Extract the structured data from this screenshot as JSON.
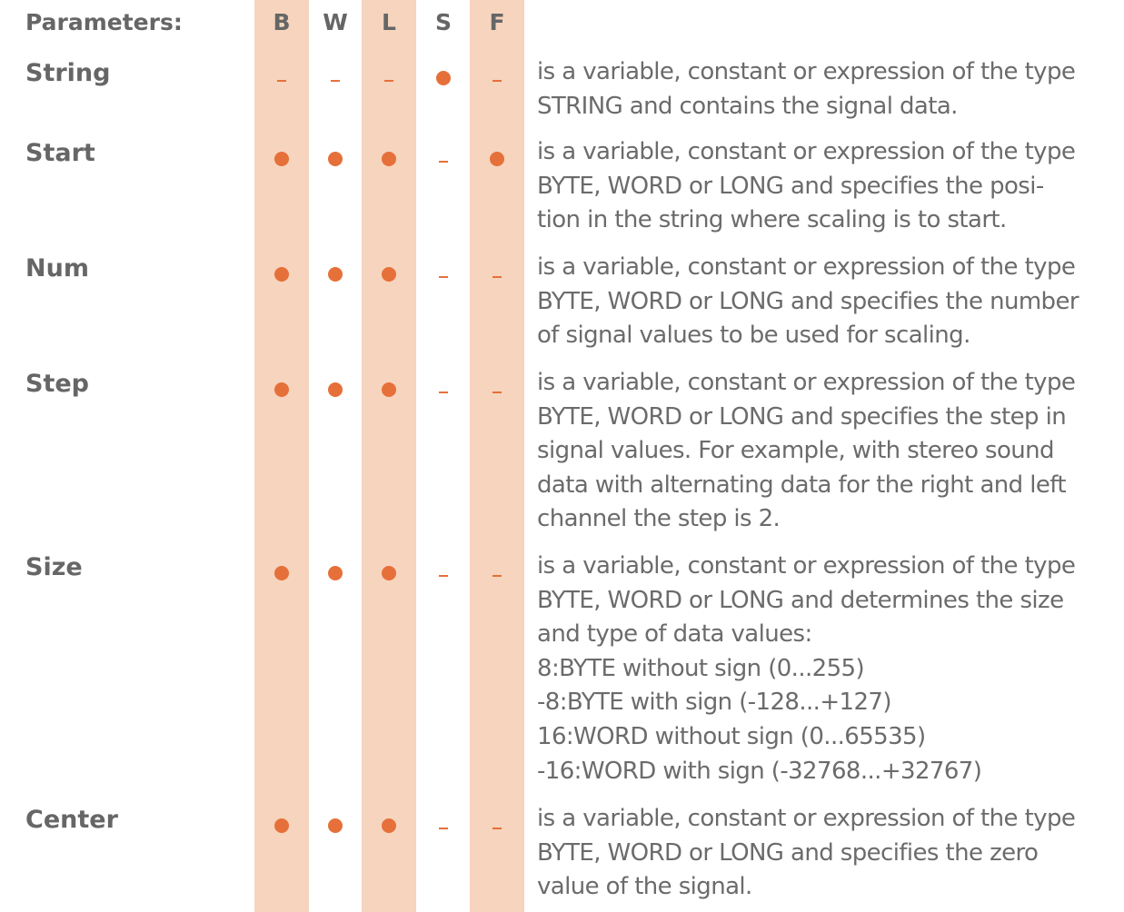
{
  "header": {
    "title": "Parameters:",
    "columns": [
      "B",
      "W",
      "L",
      "S",
      "F"
    ]
  },
  "colors": {
    "band": "#f7d4bd",
    "accent": "#e6703a",
    "text": "#666666"
  },
  "parameters": [
    {
      "name": "String",
      "marks": [
        "dash",
        "dash",
        "dash",
        "dot",
        "dash"
      ],
      "lines": [
        "is a variable, constant or expression of the type",
        "STRING and contains the signal data."
      ]
    },
    {
      "name": "Start",
      "marks": [
        "dot",
        "dot",
        "dot",
        "dash",
        "dot"
      ],
      "lines": [
        "is a variable, constant or expression of the type",
        "BYTE, WORD or LONG and specifies the posi-",
        "tion in the string where scaling is to start."
      ]
    },
    {
      "name": "Num",
      "marks": [
        "dot",
        "dot",
        "dot",
        "dash",
        "dash"
      ],
      "lines": [
        "is a variable, constant or expression of the type",
        "BYTE, WORD or LONG and specifies the number",
        "of signal values to be used for scaling."
      ]
    },
    {
      "name": "Step",
      "marks": [
        "dot",
        "dot",
        "dot",
        "dash",
        "dash"
      ],
      "lines": [
        "is a variable, constant or expression of the type",
        "BYTE, WORD or LONG and specifies the step in",
        "signal values. For example, with stereo sound",
        "data with alternating data for the right and left",
        "channel the step is 2."
      ]
    },
    {
      "name": "Size",
      "marks": [
        "dot",
        "dot",
        "dot",
        "dash",
        "dash"
      ],
      "lines": [
        "is a variable, constant or expression of the type",
        "BYTE, WORD or LONG and determines the size",
        "and type of data values:",
        "8:BYTE without sign (0...255)",
        "-8:BYTE with sign (-128...+127)",
        "16:WORD without sign (0...65535)",
        "-16:WORD with sign (-32768...+32767)"
      ]
    },
    {
      "name": "Center",
      "marks": [
        "dot",
        "dot",
        "dot",
        "dash",
        "dash"
      ],
      "lines": [
        "is a variable, constant or expression of the type",
        "BYTE, WORD or LONG and specifies the zero",
        "value of the signal."
      ]
    }
  ]
}
